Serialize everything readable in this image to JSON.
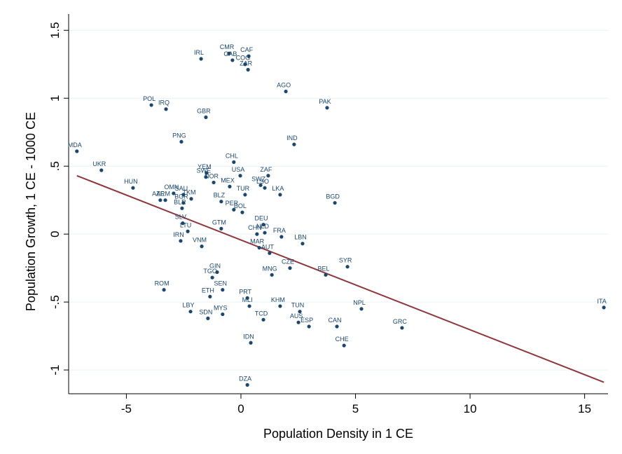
{
  "chart_data": {
    "type": "scatter",
    "xlabel": "Population Density in 1 CE",
    "ylabel": "Population Growth, 1 CE - 1000 CE",
    "xlim": [
      -7.52,
      16.02
    ],
    "ylim": [
      -1.175,
      1.62
    ],
    "xticks": [
      -5,
      0,
      5,
      10,
      15
    ],
    "yticks": [
      -1,
      {
        "value": -0.5,
        "label": "-.5"
      },
      0,
      {
        "value": 0.5,
        "label": ".5"
      },
      1,
      1.5
    ],
    "grid": true,
    "points": {
      "color": "#1a476f",
      "labels": [
        "MDA",
        "UKR",
        "HUN",
        "POL",
        "IRQ",
        "IRL",
        "CMR",
        "GAB",
        "CAF",
        "COG",
        "ZAR",
        "AGO",
        "PAK",
        "GBR",
        "IND",
        "PNG",
        "CHL",
        "YEM",
        "SWE",
        "NOR",
        "USA",
        "MEX",
        "ZAF",
        "SWZ",
        "LSO",
        "LKA",
        "BGD",
        "OMN",
        "SAU",
        "TKM",
        "AZE",
        "ARM",
        "BGR",
        "BLR",
        "BLZ",
        "TUR",
        "PER",
        "BOL",
        "SLV",
        "GTM",
        "DEU",
        "NLD",
        "CHN",
        "FRA",
        "LTU",
        "IRN",
        "LBN",
        "AUT",
        "MAR",
        "CZE",
        "SYR",
        "BEL",
        "ROM",
        "ETH",
        "SEN",
        "PRT",
        "MLI",
        "KHM",
        "TUN",
        "NPL",
        "ITA",
        "LBY",
        "MYS",
        "SDN",
        "TCD",
        "AUS",
        "ESP",
        "CAN",
        "GRC",
        "CHE",
        "IDN",
        "DZA",
        "VNM",
        "MNG",
        "TGO",
        "GIN"
      ],
      "x": [
        -7.16,
        -6.09,
        -4.71,
        -3.91,
        -3.27,
        -1.74,
        -0.52,
        -0.37,
        0.34,
        0.18,
        0.31,
        1.96,
        3.76,
        -1.53,
        2.32,
        -2.6,
        -0.31,
        -1.5,
        -1.53,
        -1.19,
        -0.03,
        -0.49,
        1.19,
        0.86,
        1.04,
        1.71,
        4.1,
        -2.94,
        -2.51,
        -2.17,
        -3.52,
        -3.3,
        -2.51,
        -2.57,
        -0.86,
        0.18,
        -0.31,
        0.06,
        -2.54,
        -0.86,
        0.98,
        1.04,
        0.7,
        1.77,
        -2.32,
        -2.63,
        2.69,
        1.25,
        0.8,
        2.14,
        4.65,
        3.7,
        -3.36,
        -1.35,
        -0.8,
        0.28,
        0.37,
        1.71,
        2.57,
        5.26,
        15.84,
        -2.2,
        -0.8,
        -1.44,
        0.98,
        2.51,
        2.97,
        4.19,
        7.03,
        4.5,
        0.43,
        0.28,
        -1.71,
        1.35,
        -1.25,
        -1.04
      ],
      "y": [
        0.61,
        0.47,
        0.34,
        0.95,
        0.92,
        1.29,
        1.33,
        1.28,
        1.31,
        1.25,
        1.21,
        1.05,
        0.93,
        0.86,
        0.66,
        0.68,
        0.53,
        0.45,
        0.42,
        0.38,
        0.43,
        0.35,
        0.43,
        0.36,
        0.34,
        0.29,
        0.23,
        0.3,
        0.29,
        0.26,
        0.25,
        0.25,
        0.23,
        0.19,
        0.24,
        0.29,
        0.18,
        0.16,
        0.08,
        0.04,
        0.07,
        0.01,
        0.0,
        -0.02,
        0.02,
        -0.05,
        -0.07,
        -0.14,
        -0.1,
        -0.25,
        -0.24,
        -0.3,
        -0.41,
        -0.46,
        -0.41,
        -0.47,
        -0.53,
        -0.53,
        -0.57,
        -0.55,
        -0.54,
        -0.57,
        -0.59,
        -0.62,
        -0.63,
        -0.65,
        -0.68,
        -0.68,
        -0.69,
        -0.82,
        -0.8,
        -1.11,
        -0.09,
        -0.3,
        -0.32,
        -0.28
      ]
    },
    "fit_line": {
      "color": "#90353b",
      "x": [
        -7.16,
        15.84
      ],
      "y": [
        0.43,
        -1.09
      ]
    }
  }
}
